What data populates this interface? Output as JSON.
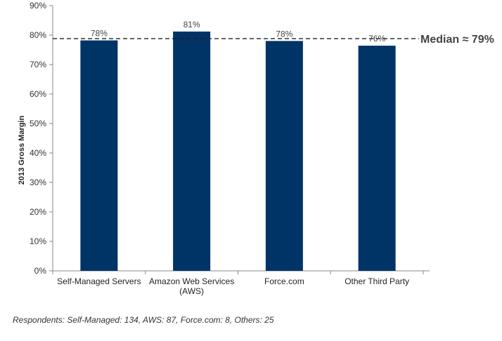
{
  "chart_data": {
    "type": "bar",
    "categories": [
      [
        "Self-Managed Servers"
      ],
      [
        "Amazon Web Services",
        "(AWS)"
      ],
      [
        "Force.com"
      ],
      [
        "Other Third Party"
      ]
    ],
    "values": [
      78.2,
      81.2,
      78.0,
      76.4
    ],
    "data_labels": [
      "78%",
      "81%",
      "78%",
      "76%"
    ],
    "ylabel": "2013 Gross Margin",
    "ylim": [
      0,
      90
    ],
    "yticks": [
      0,
      10,
      20,
      30,
      40,
      50,
      60,
      70,
      80,
      90
    ],
    "ytick_suffix": "%",
    "bar_color": "#003366",
    "grid": false,
    "median": {
      "value": 78.8,
      "label": "Median  ≈ 79%",
      "line_style": "dashed"
    },
    "footnote": "Respondents: Self-Managed: 134, AWS: 87, Force.com: 8, Others: 25"
  }
}
